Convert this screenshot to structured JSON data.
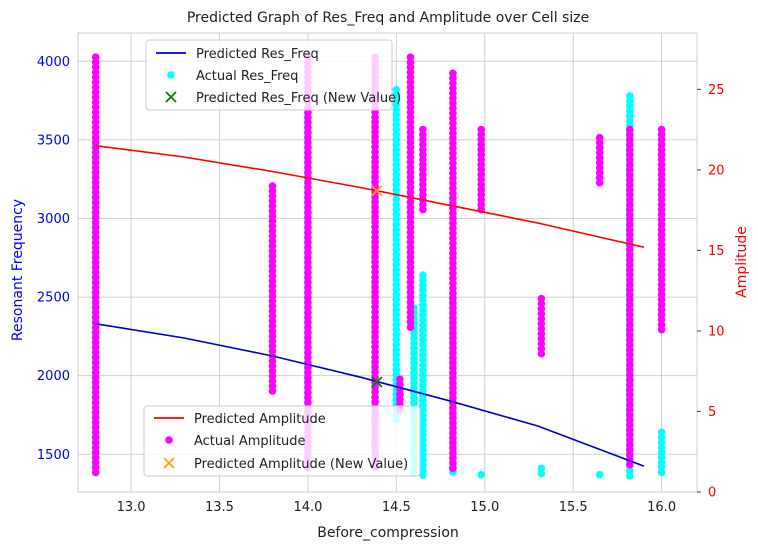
{
  "chart_data": {
    "type": "scatter",
    "title": "Predicted Graph of Res_Freq and Amplitude over Cell size",
    "xlabel": "Before_compression",
    "ylabel_left": "Resonant Frequency",
    "ylabel_right": "Amplitude",
    "xlim": [
      12.7,
      16.2
    ],
    "ylim_left": [
      1260,
      4180
    ],
    "ylim_right": [
      0,
      28.5
    ],
    "x_ticks": [
      13.0,
      13.5,
      14.0,
      14.5,
      15.0,
      15.5,
      16.0
    ],
    "x_tick_labels": [
      "13.0",
      "13.5",
      "14.0",
      "14.5",
      "15.0",
      "15.5",
      "16.0"
    ],
    "y_left_ticks": [
      1500,
      2000,
      2500,
      3000,
      3500,
      4000
    ],
    "y_left_tick_labels": [
      "1500",
      "2000",
      "2500",
      "3000",
      "3500",
      "4000"
    ],
    "y_right_ticks": [
      0,
      5,
      10,
      15,
      20,
      25
    ],
    "y_right_tick_labels": [
      "0",
      "5",
      "10",
      "15",
      "20",
      "25"
    ],
    "grid": true,
    "colors": {
      "left_axis": "#0000ff",
      "right_axis": "#ff0000",
      "pred_res_freq": "#0000cc",
      "actual_res_freq": "#00ffff",
      "new_res_freq": "#008000",
      "pred_amplitude": "#ff0000",
      "actual_amplitude": "#ff00ff",
      "new_amplitude": "#ffa500"
    },
    "legend_res": {
      "placement": "upper-left",
      "entries": [
        "Predicted Res_Freq",
        "Actual Res_Freq",
        "Predicted Res_Freq (New Value)"
      ]
    },
    "legend_amp": {
      "placement": "lower-left",
      "entries": [
        "Predicted Amplitude",
        "Actual Amplitude",
        "Predicted Amplitude (New Value)"
      ]
    },
    "series": [
      {
        "name": "Predicted Res_Freq",
        "kind": "line",
        "axis": "left",
        "x": [
          12.8,
          13.3,
          13.8,
          14.3,
          14.8,
          15.3,
          15.9
        ],
        "y": [
          2330,
          2240,
          2125,
          1990,
          1840,
          1680,
          1425
        ]
      },
      {
        "name": "Actual Res_Freq",
        "kind": "scatter",
        "axis": "left",
        "strips": [
          {
            "x": 12.8,
            "ymin": 1370,
            "ymax": 3480
          },
          {
            "x": 14.0,
            "ymin": 1400,
            "ymax": 3700
          },
          {
            "x": 14.38,
            "ymin": 1400,
            "ymax": 3650
          },
          {
            "x": 14.5,
            "ymin": 1720,
            "ymax": 3820
          },
          {
            "x": 14.6,
            "ymin": 1360,
            "ymax": 2430
          },
          {
            "x": 14.65,
            "ymin": 1360,
            "ymax": 2640
          },
          {
            "x": 14.82,
            "ymin": 1380,
            "ymax": 2500
          },
          {
            "x": 14.98,
            "ymin": 1360,
            "ymax": 1370
          },
          {
            "x": 15.32,
            "ymin": 1360,
            "ymax": 1410
          },
          {
            "x": 15.65,
            "ymin": 1360,
            "ymax": 1370
          },
          {
            "x": 15.82,
            "ymin": 1360,
            "ymax": 3780
          },
          {
            "x": 16.0,
            "ymin": 1360,
            "ymax": 1640
          }
        ]
      },
      {
        "name": "Predicted Res_Freq (New Value)",
        "kind": "marker",
        "axis": "left",
        "x": [
          14.39
        ],
        "y": [
          1960
        ]
      },
      {
        "name": "Predicted Amplitude",
        "kind": "line",
        "axis": "right",
        "x": [
          12.8,
          13.3,
          13.8,
          14.3,
          14.8,
          15.3,
          15.9
        ],
        "y": [
          21.5,
          20.8,
          19.9,
          18.9,
          17.8,
          16.7,
          15.2
        ]
      },
      {
        "name": "Actual Amplitude",
        "kind": "scatter",
        "axis": "right",
        "strips": [
          {
            "x": 12.8,
            "ymin": 1.2,
            "ymax": 27.0
          },
          {
            "x": 13.8,
            "ymin": 6.0,
            "ymax": 19.0
          },
          {
            "x": 14.0,
            "ymin": 1.5,
            "ymax": 27.0
          },
          {
            "x": 14.38,
            "ymin": 1.5,
            "ymax": 27.0
          },
          {
            "x": 14.52,
            "ymin": 5.0,
            "ymax": 7.0
          },
          {
            "x": 14.58,
            "ymin": 10.0,
            "ymax": 27.0
          },
          {
            "x": 14.65,
            "ymin": 17.5,
            "ymax": 22.5
          },
          {
            "x": 14.82,
            "ymin": 1.2,
            "ymax": 26.0
          },
          {
            "x": 14.98,
            "ymin": 17.5,
            "ymax": 22.5
          },
          {
            "x": 15.32,
            "ymin": 8.5,
            "ymax": 12.0
          },
          {
            "x": 15.65,
            "ymin": 19.0,
            "ymax": 22.0
          },
          {
            "x": 15.82,
            "ymin": 1.5,
            "ymax": 22.5
          },
          {
            "x": 16.0,
            "ymin": 10.0,
            "ymax": 22.5
          }
        ]
      },
      {
        "name": "Predicted Amplitude (New Value)",
        "kind": "marker",
        "axis": "right",
        "x": [
          14.39
        ],
        "y": [
          18.7
        ]
      }
    ]
  }
}
